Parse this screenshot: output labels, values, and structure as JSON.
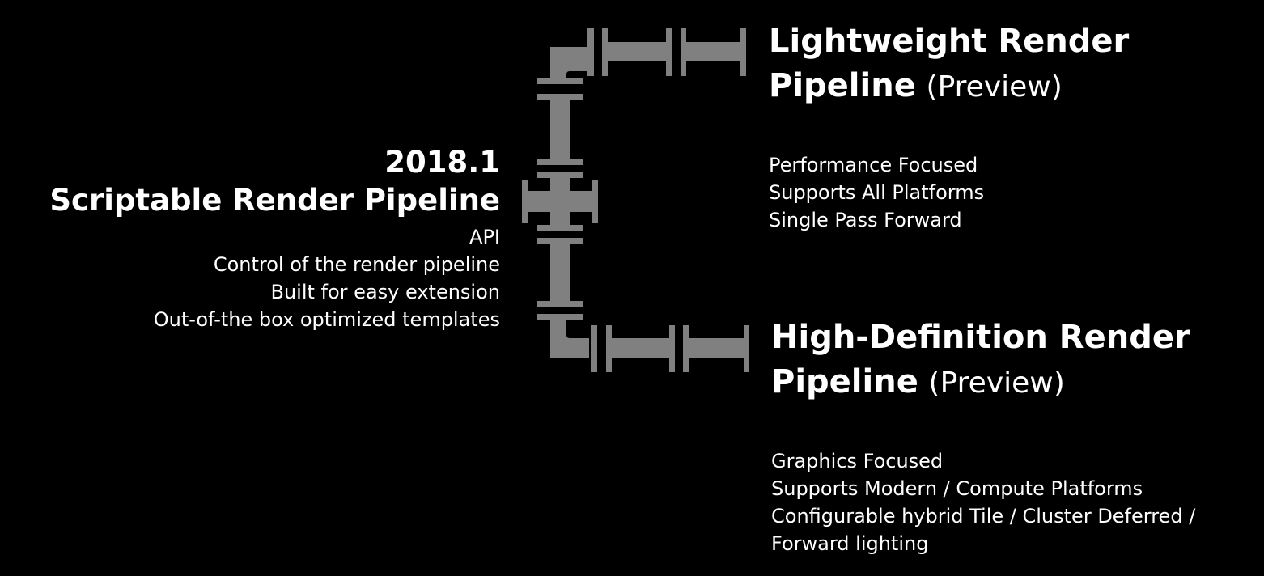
{
  "srp": {
    "version": "2018.1",
    "title": "Scriptable Render Pipeline",
    "features": [
      "API",
      "Control of the render pipeline",
      "Built for easy extension",
      "Out-of-the box optimized templates"
    ]
  },
  "lightweight": {
    "title_line1": "Lightweight Render",
    "title_line2_bold": "Pipeline",
    "title_line2_light": "(Preview)",
    "features": [
      "Performance Focused",
      "Supports All Platforms",
      "Single Pass Forward"
    ]
  },
  "high_definition": {
    "title_line1": "High-Definition Render",
    "title_line2_bold": "Pipeline",
    "title_line2_light": "(Preview)",
    "features": [
      "Graphics Focused",
      "Supports Modern / Compute Platforms",
      "Configurable hybrid Tile / Cluster Deferred /",
      "Forward lighting"
    ]
  },
  "colors": {
    "background": "#000000",
    "text": "#ffffff",
    "pipe": "#808080"
  },
  "icons": {
    "pipe_diagram": "pipe-connector-icon"
  }
}
